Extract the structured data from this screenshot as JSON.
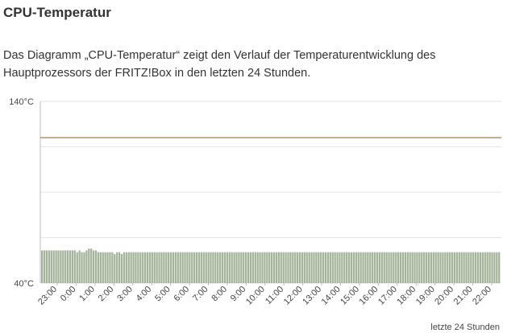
{
  "section": {
    "title": "CPU-Temperatur",
    "description": "Das Diagramm „CPU-Temperatur“ zeigt den Verlauf der Temperaturentwicklung des Hauptprozessors der FRITZ!Box in den letzten 24 Stunden."
  },
  "chart_data": {
    "type": "bar",
    "ylim": [
      40,
      140
    ],
    "yticks": [
      "140°C",
      "40°C"
    ],
    "xlabel": "letzte 24 Stunden",
    "threshold": 120,
    "xticks": [
      "23:00",
      "0:00",
      "1:00",
      "2:00",
      "3:00",
      "4:00",
      "5:00",
      "6:00",
      "7:00",
      "8:00",
      "9:00",
      "10:00",
      "11:00",
      "12:00",
      "13:00",
      "14:00",
      "15:00",
      "16:00",
      "17:00",
      "18:00",
      "19:00",
      "20:00",
      "21:00",
      "22:00"
    ],
    "values": [
      58,
      58,
      58,
      58,
      58,
      58,
      58,
      58,
      58,
      58,
      58,
      58,
      58,
      58,
      58,
      57,
      58,
      57,
      57,
      58,
      59,
      59,
      58,
      58,
      57,
      57,
      57,
      57,
      57,
      57,
      57,
      56,
      57,
      57,
      56,
      57,
      57,
      57,
      57,
      57,
      57,
      57,
      57,
      57,
      57,
      57,
      57,
      57,
      57,
      57,
      57,
      57,
      57,
      57,
      57,
      57,
      57,
      57,
      57,
      57,
      57,
      57,
      57,
      57,
      57,
      57,
      57,
      57,
      57,
      57,
      57,
      57,
      57,
      57,
      57,
      57,
      57,
      57,
      57,
      57,
      57,
      57,
      57,
      57,
      57,
      57,
      57,
      57,
      57,
      57,
      57,
      57,
      57,
      57,
      57,
      57,
      57,
      57,
      57,
      57,
      57,
      57,
      57,
      57,
      57,
      57,
      57,
      57,
      57,
      57,
      57,
      57,
      57,
      57,
      57,
      57,
      57,
      57,
      57,
      57,
      57,
      57,
      57,
      57,
      57,
      57,
      57,
      57,
      57,
      57,
      57,
      57,
      57,
      57,
      57,
      57,
      57,
      57,
      57,
      57,
      57,
      57,
      57,
      57,
      57,
      57,
      57,
      57,
      57,
      57,
      57,
      57,
      57,
      57,
      57,
      57,
      57,
      57,
      57,
      57,
      57,
      57,
      57,
      57,
      57,
      57,
      57,
      57,
      57,
      57,
      57,
      57,
      57,
      57,
      57,
      57,
      57,
      57,
      57,
      57,
      57,
      57,
      57,
      57,
      57,
      57,
      57,
      57,
      57,
      57,
      57,
      57,
      57,
      57,
      57,
      57
    ],
    "colors": {
      "bar": "#a4b49a",
      "bar_edge": "#6f7e66",
      "threshold": "#c0823c",
      "grid": "#e3e3e3",
      "axis": "#bbbbbb"
    }
  }
}
